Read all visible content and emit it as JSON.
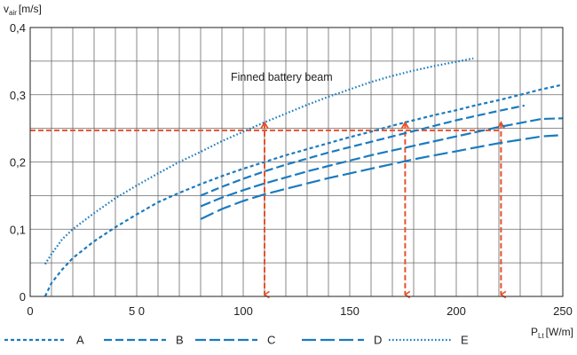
{
  "chart_data": {
    "type": "line",
    "title": "",
    "annotation": "Finned battery beam",
    "ylabel_main": "v",
    "ylabel_sub": "air",
    "ylabel_unit": "[m/s]",
    "xlabel_main": "P",
    "xlabel_sub": "Lt",
    "xlabel_unit": "[W/m]",
    "xlim": [
      0,
      250
    ],
    "ylim": [
      0,
      0.4
    ],
    "grid": true,
    "x_ticks": [
      {
        "value": 0,
        "label": "0"
      },
      {
        "value": 50,
        "label": "5 0"
      },
      {
        "value": 100,
        "label": "100"
      },
      {
        "value": 150,
        "label": "150"
      },
      {
        "value": 200,
        "label": "200"
      },
      {
        "value": 250,
        "label": "250"
      }
    ],
    "y_ticks": [
      {
        "value": 0,
        "label": "0"
      },
      {
        "value": 0.1,
        "label": "0,1"
      },
      {
        "value": 0.2,
        "label": "0,2"
      },
      {
        "value": 0.3,
        "label": "0,3"
      },
      {
        "value": 0.4,
        "label": "0,4"
      }
    ],
    "series": [
      {
        "name": "A",
        "color": "#1a7bbf",
        "dash": "4,3",
        "points": [
          [
            7,
            0
          ],
          [
            10,
            0.02
          ],
          [
            15,
            0.04
          ],
          [
            20,
            0.057
          ],
          [
            30,
            0.082
          ],
          [
            40,
            0.103
          ],
          [
            50,
            0.122
          ],
          [
            60,
            0.14
          ],
          [
            70,
            0.154
          ],
          [
            80,
            0.167
          ],
          [
            90,
            0.179
          ],
          [
            100,
            0.19
          ],
          [
            110,
            0.2
          ],
          [
            120,
            0.21
          ],
          [
            130,
            0.219
          ],
          [
            140,
            0.228
          ],
          [
            150,
            0.237
          ],
          [
            160,
            0.245
          ],
          [
            170,
            0.254
          ],
          [
            180,
            0.262
          ],
          [
            190,
            0.27
          ],
          [
            200,
            0.277
          ],
          [
            210,
            0.285
          ],
          [
            220,
            0.292
          ],
          [
            230,
            0.3
          ],
          [
            240,
            0.308
          ],
          [
            250,
            0.315
          ]
        ]
      },
      {
        "name": "B",
        "color": "#1a7bbf",
        "dash": "9,4",
        "points": [
          [
            80,
            0.15
          ],
          [
            90,
            0.163
          ],
          [
            100,
            0.175
          ],
          [
            110,
            0.186
          ],
          [
            120,
            0.196
          ],
          [
            130,
            0.205
          ],
          [
            140,
            0.214
          ],
          [
            150,
            0.222
          ],
          [
            160,
            0.23
          ],
          [
            170,
            0.238
          ],
          [
            180,
            0.246
          ],
          [
            190,
            0.254
          ],
          [
            200,
            0.262
          ],
          [
            210,
            0.269
          ],
          [
            220,
            0.276
          ],
          [
            232,
            0.284
          ]
        ]
      },
      {
        "name": "C",
        "color": "#1a7bbf",
        "dash": "12,4",
        "points": [
          [
            80,
            0.134
          ],
          [
            90,
            0.147
          ],
          [
            100,
            0.158
          ],
          [
            110,
            0.168
          ],
          [
            120,
            0.177
          ],
          [
            130,
            0.186
          ],
          [
            140,
            0.194
          ],
          [
            150,
            0.202
          ],
          [
            160,
            0.21
          ],
          [
            170,
            0.217
          ],
          [
            180,
            0.224
          ],
          [
            190,
            0.231
          ],
          [
            200,
            0.238
          ],
          [
            210,
            0.245
          ],
          [
            220,
            0.252
          ],
          [
            230,
            0.258
          ],
          [
            240,
            0.264
          ],
          [
            250,
            0.265
          ]
        ]
      },
      {
        "name": "D",
        "color": "#1a7bbf",
        "dash": "16,5",
        "points": [
          [
            80,
            0.115
          ],
          [
            90,
            0.13
          ],
          [
            100,
            0.142
          ],
          [
            110,
            0.152
          ],
          [
            120,
            0.16
          ],
          [
            130,
            0.168
          ],
          [
            140,
            0.176
          ],
          [
            150,
            0.183
          ],
          [
            160,
            0.19
          ],
          [
            170,
            0.197
          ],
          [
            180,
            0.204
          ],
          [
            190,
            0.21
          ],
          [
            200,
            0.216
          ],
          [
            210,
            0.222
          ],
          [
            220,
            0.228
          ],
          [
            230,
            0.233
          ],
          [
            240,
            0.238
          ],
          [
            250,
            0.24
          ]
        ]
      },
      {
        "name": "E",
        "color": "#1a7bbf",
        "dash": "1.6,2.4",
        "points": [
          [
            7,
            0.048
          ],
          [
            10,
            0.063
          ],
          [
            15,
            0.085
          ],
          [
            20,
            0.1
          ],
          [
            30,
            0.124
          ],
          [
            40,
            0.146
          ],
          [
            50,
            0.165
          ],
          [
            60,
            0.183
          ],
          [
            70,
            0.2
          ],
          [
            80,
            0.215
          ],
          [
            90,
            0.231
          ],
          [
            100,
            0.245
          ],
          [
            110,
            0.259
          ],
          [
            120,
            0.272
          ],
          [
            130,
            0.285
          ],
          [
            140,
            0.297
          ],
          [
            150,
            0.308
          ],
          [
            160,
            0.319
          ],
          [
            170,
            0.328
          ],
          [
            180,
            0.336
          ],
          [
            190,
            0.343
          ],
          [
            200,
            0.349
          ],
          [
            208,
            0.354
          ]
        ]
      }
    ],
    "reference_lines": {
      "color": "#e8512a",
      "y": 0.247,
      "x_start": 0,
      "x_values": [
        110,
        176,
        221
      ]
    }
  },
  "legend": [
    {
      "label": "A"
    },
    {
      "label": "B"
    },
    {
      "label": "C"
    },
    {
      "label": "D"
    },
    {
      "label": "E"
    }
  ]
}
